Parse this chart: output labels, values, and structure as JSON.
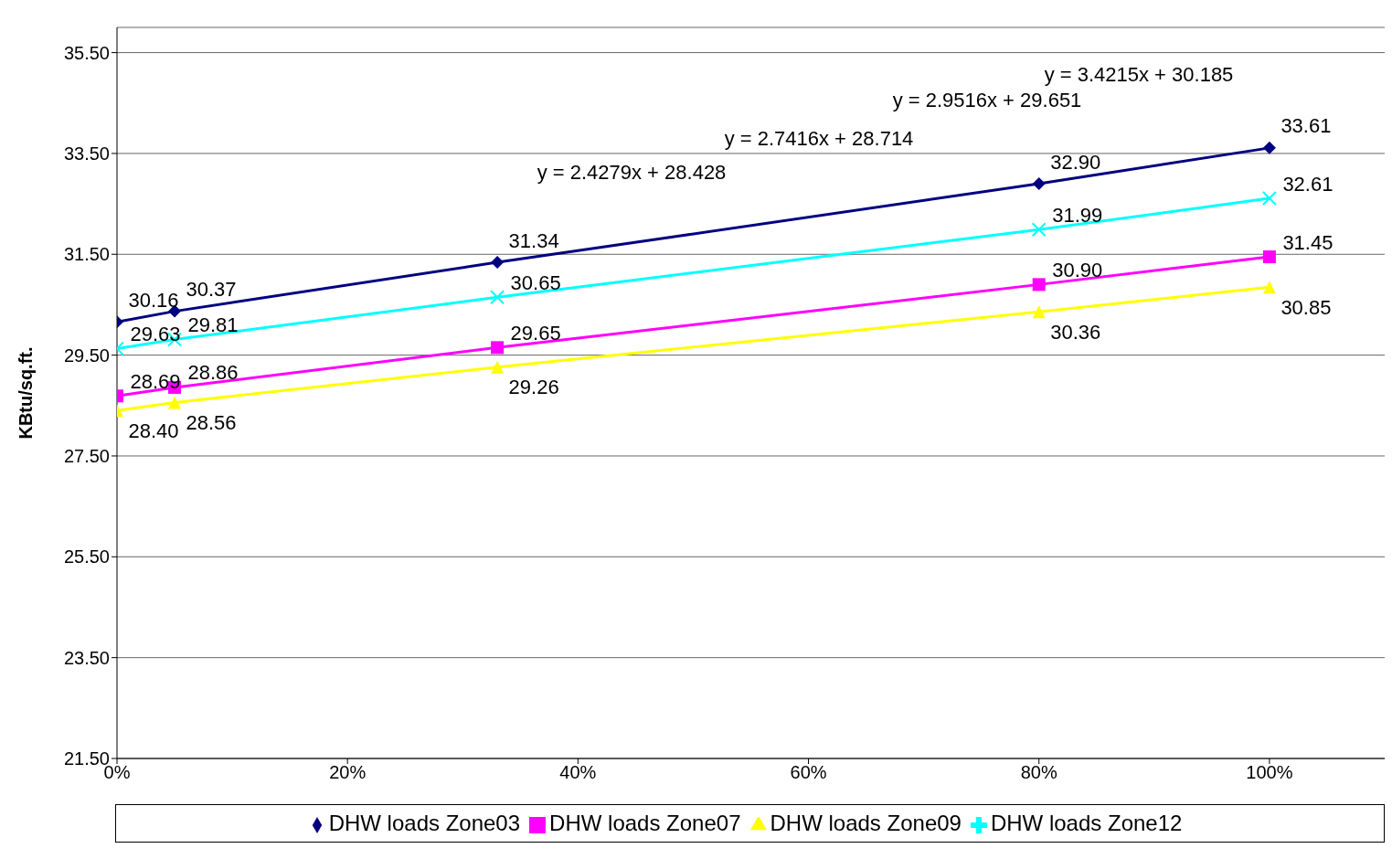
{
  "chart_data": {
    "type": "line",
    "ylabel": "KBtu/sq.ft.",
    "x": [
      0,
      0.05,
      0.33,
      0.8,
      1.0
    ],
    "xlim": [
      0,
      1.1
    ],
    "xticks": [
      {
        "value": 0,
        "label": "0%"
      },
      {
        "value": 0.2,
        "label": "20%"
      },
      {
        "value": 0.4,
        "label": "40%"
      },
      {
        "value": 0.6,
        "label": "60%"
      },
      {
        "value": 0.8,
        "label": "80%"
      },
      {
        "value": 1.0,
        "label": "100%"
      }
    ],
    "ylim": [
      21.5,
      36
    ],
    "yticks": [
      {
        "value": 21.5,
        "label": "21.50"
      },
      {
        "value": 23.5,
        "label": "23.50"
      },
      {
        "value": 25.5,
        "label": "25.50"
      },
      {
        "value": 27.5,
        "label": "27.50"
      },
      {
        "value": 29.5,
        "label": "29.50"
      },
      {
        "value": 31.5,
        "label": "31.50"
      },
      {
        "value": 33.5,
        "label": "33.50"
      },
      {
        "value": 35.5,
        "label": "35.50"
      }
    ],
    "series": [
      {
        "name": "DHW loads Zone03",
        "color": "#000080",
        "marker": "diamond",
        "values": [
          30.16,
          30.37,
          31.34,
          32.9,
          33.61
        ],
        "value_labels": [
          "30.16",
          "30.37",
          "31.34",
          "32.90",
          "33.61"
        ]
      },
      {
        "name": "DHW loads Zone07",
        "color": "#ff00ff",
        "marker": "square",
        "values": [
          28.69,
          28.86,
          29.65,
          30.9,
          31.45
        ],
        "value_labels": [
          "28.69",
          "28.86",
          "29.65",
          "30.90",
          "31.45"
        ]
      },
      {
        "name": "DHW loads Zone09",
        "color": "#ffff00",
        "marker": "triangle",
        "values": [
          28.4,
          28.56,
          29.26,
          30.36,
          30.85
        ],
        "value_labels": [
          "28.40",
          "28.56",
          "29.26",
          "30.36",
          "30.85"
        ]
      },
      {
        "name": "DHW loads Zone12",
        "color": "#00ffff",
        "marker": "cross",
        "values": [
          29.63,
          29.81,
          30.65,
          31.99,
          32.61
        ],
        "value_labels": [
          "29.63",
          "29.81",
          "30.65",
          "31.99",
          "32.61"
        ]
      }
    ],
    "annotations": [
      "y = 3.4215x + 30.185",
      "y = 2.9516x + 29.651",
      "y = 2.7416x + 28.714",
      "y = 2.4279x + 28.428"
    ],
    "grid": "y",
    "legend": "bottom"
  }
}
